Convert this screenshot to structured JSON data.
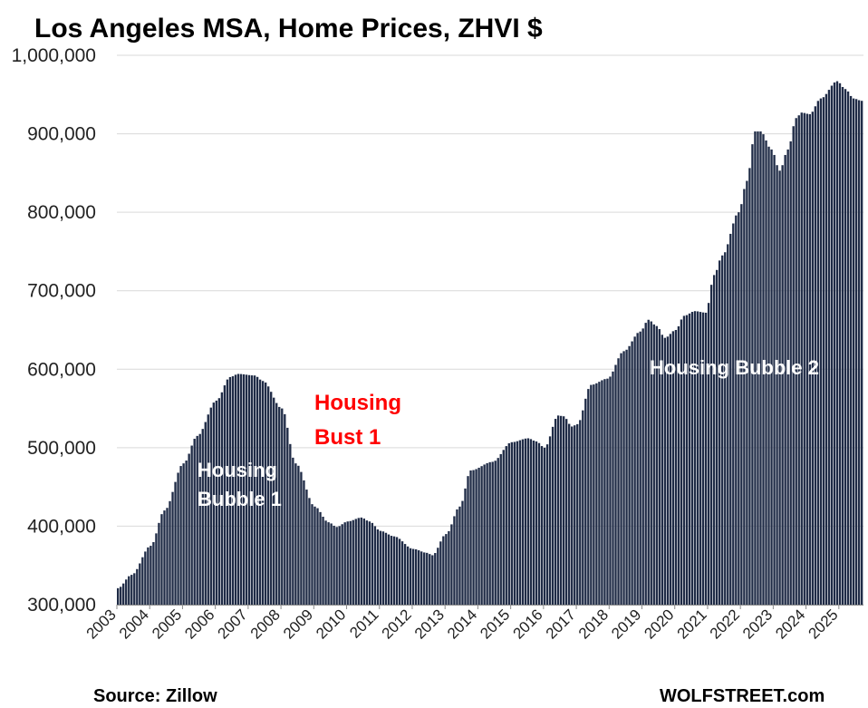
{
  "chart_data": {
    "type": "bar",
    "title": "Los Angeles MSA, Home Prices, ZHVI $",
    "xlabel": "",
    "ylabel": "",
    "ylim": [
      300000,
      1000000
    ],
    "yticks": [
      "300,000",
      "400,000",
      "500,000",
      "600,000",
      "700,000",
      "800,000",
      "900,000",
      "1,000,000"
    ],
    "ytick_values": [
      300000,
      400000,
      500000,
      600000,
      700000,
      800000,
      900000,
      1000000
    ],
    "xticks": [
      "2003",
      "2004",
      "2005",
      "2006",
      "2007",
      "2008",
      "2009",
      "2010",
      "2011",
      "2012",
      "2013",
      "2014",
      "2015",
      "2016",
      "2017",
      "2018",
      "2019",
      "2020",
      "2021",
      "2022",
      "2023",
      "2024",
      "2025"
    ],
    "frequency": "monthly",
    "start": "2003-01",
    "end": "2025-09",
    "bar_color": "#1f2b46",
    "grid": true,
    "legend": "none",
    "keypoints": [
      [
        "2003-01",
        321000
      ],
      [
        "2003-06",
        338000
      ],
      [
        "2004-01",
        375000
      ],
      [
        "2004-06",
        420000
      ],
      [
        "2005-01",
        480000
      ],
      [
        "2005-06",
        515000
      ],
      [
        "2006-01",
        560000
      ],
      [
        "2006-06",
        590000
      ],
      [
        "2006-09",
        594000
      ],
      [
        "2007-03",
        592000
      ],
      [
        "2007-06",
        585000
      ],
      [
        "2008-01",
        550000
      ],
      [
        "2008-06",
        480000
      ],
      [
        "2009-01",
        425000
      ],
      [
        "2009-06",
        405000
      ],
      [
        "2009-09",
        399000
      ],
      [
        "2010-01",
        406000
      ],
      [
        "2010-06",
        411000
      ],
      [
        "2010-09",
        406000
      ],
      [
        "2011-01",
        394000
      ],
      [
        "2011-06",
        387000
      ],
      [
        "2012-01",
        371000
      ],
      [
        "2012-06",
        366000
      ],
      [
        "2012-08",
        363000
      ],
      [
        "2013-01",
        390000
      ],
      [
        "2013-06",
        425000
      ],
      [
        "2013-10",
        471000
      ],
      [
        "2014-06",
        482000
      ],
      [
        "2015-01",
        507000
      ],
      [
        "2015-07",
        512000
      ],
      [
        "2015-10",
        508000
      ],
      [
        "2016-01",
        500000
      ],
      [
        "2016-06",
        541000
      ],
      [
        "2016-08",
        540000
      ],
      [
        "2016-11",
        527000
      ],
      [
        "2017-01",
        530000
      ],
      [
        "2017-06",
        580000
      ],
      [
        "2017-12",
        588000
      ],
      [
        "2018-06",
        623000
      ],
      [
        "2018-12",
        648000
      ],
      [
        "2019-03",
        663000
      ],
      [
        "2019-06",
        655000
      ],
      [
        "2019-09",
        640000
      ],
      [
        "2020-01",
        650000
      ],
      [
        "2020-04",
        668000
      ],
      [
        "2020-08",
        674000
      ],
      [
        "2020-12",
        672000
      ],
      [
        "2021-03",
        720000
      ],
      [
        "2021-06",
        745000
      ],
      [
        "2021-12",
        800000
      ],
      [
        "2022-03",
        840000
      ],
      [
        "2022-06",
        903000
      ],
      [
        "2022-08",
        903000
      ],
      [
        "2022-12",
        880000
      ],
      [
        "2023-03",
        853000
      ],
      [
        "2023-06",
        880000
      ],
      [
        "2023-09",
        920000
      ],
      [
        "2023-11",
        927000
      ],
      [
        "2024-02",
        925000
      ],
      [
        "2024-06",
        945000
      ],
      [
        "2024-12",
        967000
      ],
      [
        "2025-03",
        957000
      ],
      [
        "2025-06",
        945000
      ],
      [
        "2025-09",
        942000
      ]
    ],
    "annotations": [
      {
        "text_lines": [
          "Housing",
          "Bubble 1"
        ],
        "color": "#ffffff"
      },
      {
        "text_lines": [
          "Housing",
          "Bust 1"
        ],
        "color": "#ff0000"
      },
      {
        "text_lines": [
          "Housing Bubble 2"
        ],
        "color": "#ffffff"
      }
    ]
  },
  "footer": {
    "source": "Source: Zillow",
    "brand": "WOLFSTREET.com"
  }
}
